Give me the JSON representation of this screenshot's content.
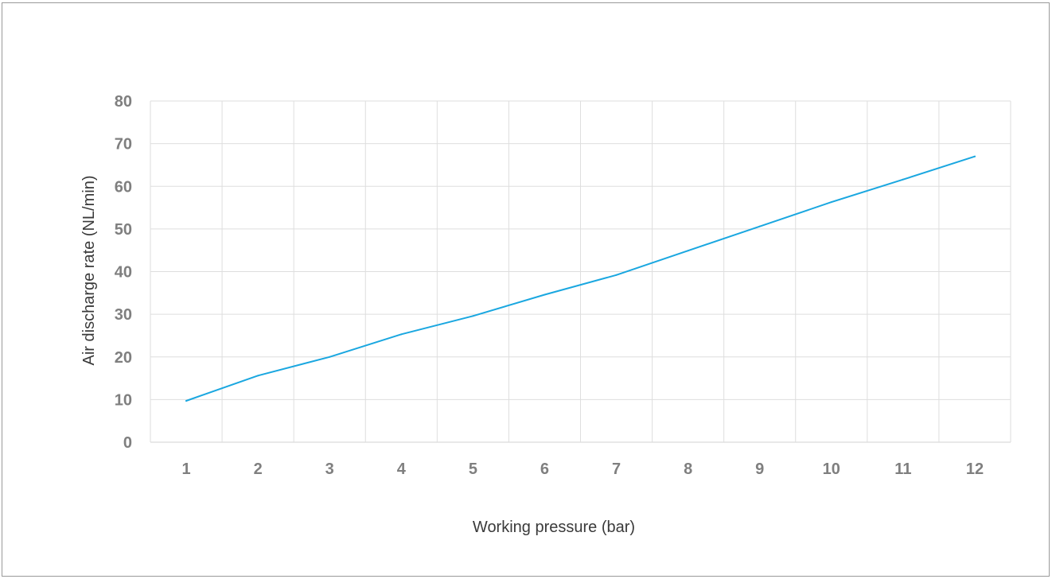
{
  "chart_data": {
    "type": "line",
    "title": "",
    "xlabel": "Working pressure (bar)",
    "ylabel": "Air discharge rate (NL/min)",
    "categories": [
      "1",
      "2",
      "3",
      "4",
      "5",
      "6",
      "7",
      "8",
      "9",
      "10",
      "11",
      "12"
    ],
    "series": [
      {
        "name": "",
        "color": "#1aa7e0",
        "values": [
          9.7,
          15.6,
          20.0,
          25.3,
          29.6,
          34.6,
          39.2,
          44.9,
          50.6,
          56.3,
          61.6,
          67.0
        ]
      }
    ],
    "yticks": [
      0,
      10,
      20,
      30,
      40,
      50,
      60,
      70,
      80
    ],
    "ylim": [
      0,
      80
    ],
    "grid": true,
    "legend": "none"
  }
}
